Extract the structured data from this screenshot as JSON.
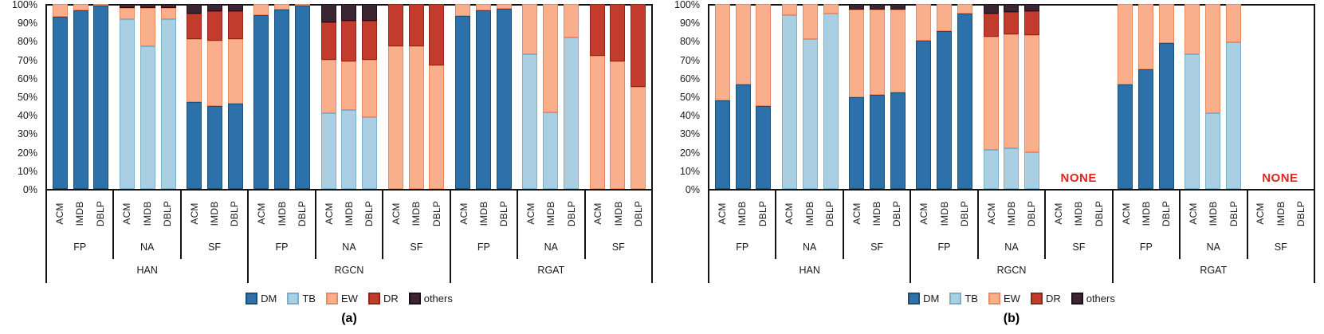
{
  "stack_order": [
    "DM",
    "TB",
    "EW",
    "DR",
    "others"
  ],
  "series_colors": {
    "DM": {
      "fill": "#2C71A9",
      "edge": "#1D4E74"
    },
    "TB": {
      "fill": "#AACFE3",
      "edge": "#7BAFCA"
    },
    "EW": {
      "fill": "#F9AF8C",
      "edge": "#EA8960"
    },
    "DR": {
      "fill": "#C33B2C",
      "edge": "#8F261A"
    },
    "others": {
      "fill": "#3A2633",
      "edge": "#1E1019"
    }
  },
  "legend": [
    {
      "key": "DM",
      "label": "DM"
    },
    {
      "key": "TB",
      "label": "TB"
    },
    {
      "key": "EW",
      "label": "EW"
    },
    {
      "key": "DR",
      "label": "DR"
    },
    {
      "key": "others",
      "label": "others"
    }
  ],
  "none_label": {
    "text": "NONE",
    "color": "#E02521"
  },
  "chart_data": [
    {
      "type": "bar",
      "subtype": "stacked-percent",
      "caption": "(a)",
      "ylim": [
        0,
        100
      ],
      "y_ticks": [
        "100%",
        "90%",
        "80%",
        "70%",
        "60%",
        "50%",
        "40%",
        "30%",
        "20%",
        "10%",
        "0%"
      ],
      "models": [
        {
          "name": "HAN",
          "groups": [
            {
              "name": "FP",
              "bars": [
                {
                  "name": "ACM",
                  "segments": {
                    "DM": 93,
                    "EW": 7
                  }
                },
                {
                  "name": "IMDB",
                  "segments": {
                    "DM": 96.5,
                    "EW": 3.5
                  }
                },
                {
                  "name": "DBLP",
                  "segments": {
                    "DM": 99,
                    "EW": 1
                  }
                }
              ]
            },
            {
              "name": "NA",
              "bars": [
                {
                  "name": "ACM",
                  "segments": {
                    "TB": 92,
                    "EW": 6,
                    "others": 2
                  }
                },
                {
                  "name": "IMDB",
                  "segments": {
                    "TB": 77,
                    "EW": 21,
                    "others": 2
                  }
                },
                {
                  "name": "DBLP",
                  "segments": {
                    "TB": 92,
                    "EW": 6,
                    "others": 2
                  }
                }
              ]
            },
            {
              "name": "SF",
              "bars": [
                {
                  "name": "ACM",
                  "segments": {
                    "DM": 47,
                    "EW": 34,
                    "DR": 14,
                    "others": 5
                  }
                },
                {
                  "name": "IMDB",
                  "segments": {
                    "DM": 45,
                    "EW": 35,
                    "DR": 16,
                    "others": 4
                  }
                },
                {
                  "name": "DBLP",
                  "segments": {
                    "DM": 46,
                    "EW": 35,
                    "DR": 15,
                    "others": 4
                  }
                }
              ]
            }
          ]
        },
        {
          "name": "RGCN",
          "groups": [
            {
              "name": "FP",
              "bars": [
                {
                  "name": "ACM",
                  "segments": {
                    "DM": 94,
                    "EW": 6
                  }
                },
                {
                  "name": "IMDB",
                  "segments": {
                    "DM": 97,
                    "EW": 3
                  }
                },
                {
                  "name": "DBLP",
                  "segments": {
                    "DM": 99,
                    "EW": 1
                  }
                }
              ]
            },
            {
              "name": "NA",
              "bars": [
                {
                  "name": "ACM",
                  "segments": {
                    "TB": 41,
                    "EW": 29,
                    "DR": 20,
                    "others": 10
                  }
                },
                {
                  "name": "IMDB",
                  "segments": {
                    "TB": 42.5,
                    "EW": 26.5,
                    "DR": 22,
                    "others": 9
                  }
                },
                {
                  "name": "DBLP",
                  "segments": {
                    "TB": 39,
                    "EW": 31,
                    "DR": 21,
                    "others": 9
                  }
                }
              ]
            },
            {
              "name": "SF",
              "bars": [
                {
                  "name": "ACM",
                  "segments": {
                    "EW": 77,
                    "DR": 23
                  }
                },
                {
                  "name": "IMDB",
                  "segments": {
                    "EW": 77,
                    "DR": 23
                  }
                },
                {
                  "name": "DBLP",
                  "segments": {
                    "EW": 67,
                    "DR": 33
                  }
                }
              ]
            }
          ]
        },
        {
          "name": "RGAT",
          "groups": [
            {
              "name": "FP",
              "bars": [
                {
                  "name": "ACM",
                  "segments": {
                    "DM": 93.5,
                    "EW": 6.5
                  }
                },
                {
                  "name": "IMDB",
                  "segments": {
                    "DM": 96.5,
                    "EW": 3.5
                  }
                },
                {
                  "name": "DBLP",
                  "segments": {
                    "DM": 97.5,
                    "EW": 2.5
                  }
                }
              ]
            },
            {
              "name": "NA",
              "bars": [
                {
                  "name": "ACM",
                  "segments": {
                    "TB": 73,
                    "EW": 27
                  }
                },
                {
                  "name": "IMDB",
                  "segments": {
                    "TB": 41.5,
                    "EW": 58.5
                  }
                },
                {
                  "name": "DBLP",
                  "segments": {
                    "TB": 82,
                    "EW": 18
                  }
                }
              ]
            },
            {
              "name": "SF",
              "bars": [
                {
                  "name": "ACM",
                  "segments": {
                    "EW": 72,
                    "DR": 28
                  }
                },
                {
                  "name": "IMDB",
                  "segments": {
                    "EW": 69,
                    "DR": 31
                  }
                },
                {
                  "name": "DBLP",
                  "segments": {
                    "EW": 55,
                    "DR": 45
                  }
                }
              ]
            }
          ]
        }
      ]
    },
    {
      "type": "bar",
      "subtype": "stacked-percent",
      "caption": "(b)",
      "ylim": [
        0,
        100
      ],
      "y_ticks": [
        "100%",
        "90%",
        "80%",
        "70%",
        "60%",
        "50%",
        "40%",
        "30%",
        "20%",
        "10%",
        "0%"
      ],
      "models": [
        {
          "name": "HAN",
          "groups": [
            {
              "name": "FP",
              "bars": [
                {
                  "name": "ACM",
                  "segments": {
                    "DM": 48,
                    "EW": 52
                  }
                },
                {
                  "name": "IMDB",
                  "segments": {
                    "DM": 56.5,
                    "EW": 43.5
                  }
                },
                {
                  "name": "DBLP",
                  "segments": {
                    "DM": 45,
                    "EW": 55
                  }
                }
              ]
            },
            {
              "name": "NA",
              "bars": [
                {
                  "name": "ACM",
                  "segments": {
                    "TB": 94,
                    "EW": 6
                  }
                },
                {
                  "name": "IMDB",
                  "segments": {
                    "TB": 81,
                    "EW": 19
                  }
                },
                {
                  "name": "DBLP",
                  "segments": {
                    "TB": 95,
                    "EW": 5
                  }
                }
              ]
            },
            {
              "name": "SF",
              "bars": [
                {
                  "name": "ACM",
                  "segments": {
                    "DM": 49.5,
                    "EW": 47.5,
                    "others": 3
                  }
                },
                {
                  "name": "IMDB",
                  "segments": {
                    "DM": 51,
                    "EW": 46,
                    "others": 3
                  }
                },
                {
                  "name": "DBLP",
                  "segments": {
                    "DM": 52,
                    "EW": 45,
                    "others": 3
                  }
                }
              ]
            }
          ]
        },
        {
          "name": "RGCN",
          "groups": [
            {
              "name": "FP",
              "bars": [
                {
                  "name": "ACM",
                  "segments": {
                    "DM": 80,
                    "EW": 20
                  }
                },
                {
                  "name": "IMDB",
                  "segments": {
                    "DM": 85.5,
                    "EW": 14.5
                  }
                },
                {
                  "name": "DBLP",
                  "segments": {
                    "DM": 95,
                    "EW": 5
                  }
                }
              ]
            },
            {
              "name": "NA",
              "bars": [
                {
                  "name": "ACM",
                  "segments": {
                    "TB": 21,
                    "EW": 61.5,
                    "DR": 12.5,
                    "others": 5
                  }
                },
                {
                  "name": "IMDB",
                  "segments": {
                    "TB": 22,
                    "EW": 61.5,
                    "DR": 12,
                    "others": 4.5
                  }
                },
                {
                  "name": "DBLP",
                  "segments": {
                    "TB": 20,
                    "EW": 63,
                    "DR": 13,
                    "others": 4
                  }
                }
              ]
            },
            {
              "name": "SF",
              "none": true,
              "bars": [
                {
                  "name": "ACM"
                },
                {
                  "name": "IMDB"
                },
                {
                  "name": "DBLP"
                }
              ]
            }
          ]
        },
        {
          "name": "RGAT",
          "groups": [
            {
              "name": "FP",
              "bars": [
                {
                  "name": "ACM",
                  "segments": {
                    "DM": 56.5,
                    "EW": 43.5
                  }
                },
                {
                  "name": "IMDB",
                  "segments": {
                    "DM": 64.5,
                    "EW": 35.5
                  }
                },
                {
                  "name": "DBLP",
                  "segments": {
                    "DM": 79,
                    "EW": 21
                  }
                }
              ]
            },
            {
              "name": "NA",
              "bars": [
                {
                  "name": "ACM",
                  "segments": {
                    "TB": 73,
                    "EW": 27
                  }
                },
                {
                  "name": "IMDB",
                  "segments": {
                    "TB": 41,
                    "EW": 59
                  }
                },
                {
                  "name": "DBLP",
                  "segments": {
                    "TB": 79.5,
                    "EW": 20.5
                  }
                }
              ]
            },
            {
              "name": "SF",
              "none": true,
              "bars": [
                {
                  "name": "ACM"
                },
                {
                  "name": "IMDB"
                },
                {
                  "name": "DBLP"
                }
              ]
            }
          ]
        }
      ]
    }
  ]
}
